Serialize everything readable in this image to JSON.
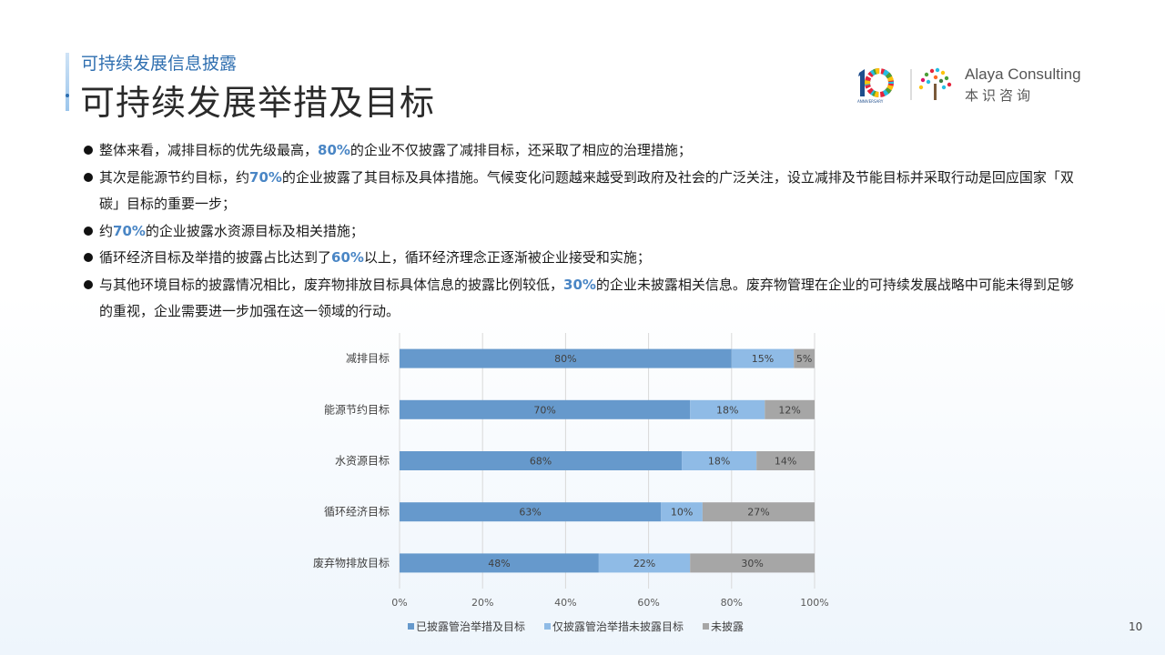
{
  "header": {
    "subtitle": "可持续发展信息披露",
    "title": "可持续发展举措及目标"
  },
  "logo": {
    "name_en": "Alaya Consulting",
    "name_cn": "本识咨询",
    "anniversary_text": "ANNIVERSARY",
    "brand_color": "#1f4e8c"
  },
  "bullets": [
    {
      "before": "整体来看，减排目标的优先级最高，",
      "highlight": "80%",
      "after": "的企业不仅披露了减排目标，还采取了相应的治理措施；"
    },
    {
      "before": "其次是能源节约目标，约",
      "highlight": "70%",
      "after": "的企业披露了其目标及具体措施。气候变化问题越来越受到政府及社会的广泛关注，设立减排及节能目标并采取行动是回应国家「双碳」目标的重要一步；"
    },
    {
      "before": "约",
      "highlight": "70%",
      "after": "的企业披露水资源目标及相关措施；"
    },
    {
      "before": "循环经济目标及举措的披露占比达到了",
      "highlight": "60%",
      "after": "以上，循环经济理念正逐渐被企业接受和实施；"
    },
    {
      "before": "与其他环境目标的披露情况相比，废弃物排放目标具体信息的披露比例较低，",
      "highlight": "30%",
      "after": "的企业未披露相关信息。废弃物管理在企业的可持续发展战略中可能未得到足够的重视，企业需要进一步加强在这一领域的行动。"
    }
  ],
  "chart_data": {
    "type": "bar",
    "orientation": "horizontal",
    "stacked": true,
    "categories": [
      "减排目标",
      "能源节约目标",
      "水资源目标",
      "循环经济目标",
      "废弃物排放目标"
    ],
    "series": [
      {
        "name": "已披露管治举措及目标",
        "values": [
          80,
          70,
          68,
          63,
          48
        ],
        "color": "#6699cc"
      },
      {
        "name": "仅披露管治举措未披露目标",
        "values": [
          15,
          18,
          18,
          10,
          22
        ],
        "color": "#8fbbe6"
      },
      {
        "name": "未披露",
        "values": [
          5,
          12,
          14,
          27,
          30
        ],
        "color": "#a6a6a6"
      }
    ],
    "x_ticks": [
      "0%",
      "20%",
      "40%",
      "60%",
      "80%",
      "100%"
    ],
    "xlim": [
      0,
      100
    ],
    "grid": true,
    "legend": "bottom",
    "data_label_suffix": "%"
  },
  "page_number": "10"
}
